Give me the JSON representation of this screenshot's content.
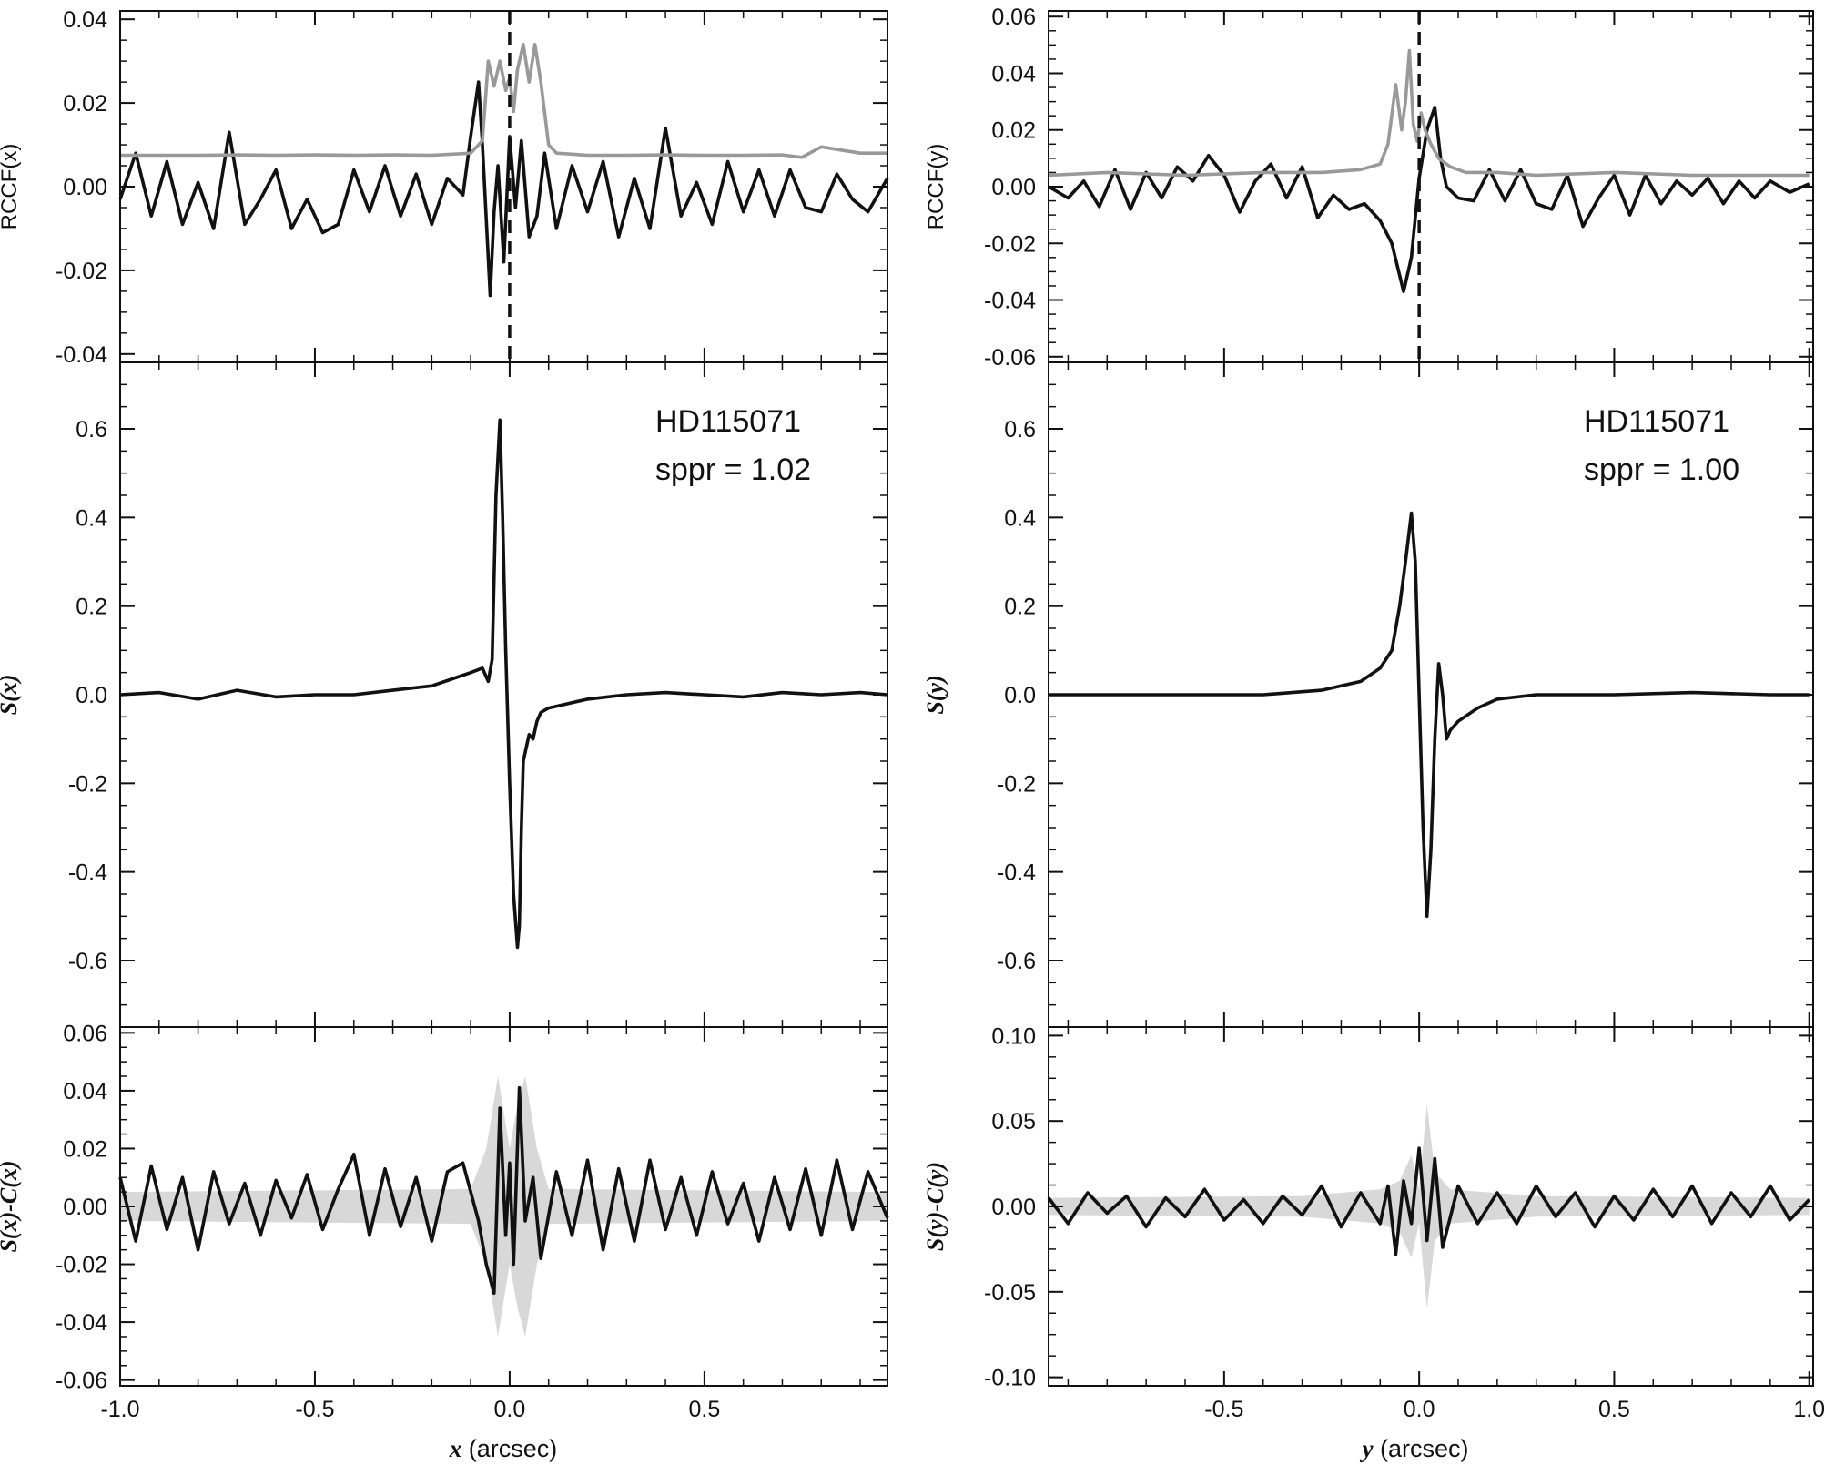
{
  "figure": {
    "panels": [
      {
        "id": "left",
        "xlim": [
          -1.0,
          0.97
        ],
        "x_ticks": [
          -1.0,
          -0.5,
          0.0,
          0.5
        ],
        "x_tick_labels": [
          "-1.0",
          "-0.5",
          "0.0",
          "0.5"
        ],
        "xlabel_var": "x",
        "xlabel_unit": " (arcsec)"
      },
      {
        "id": "right",
        "xlim": [
          -0.95,
          1.01
        ],
        "x_ticks": [
          -0.5,
          0.0,
          0.5,
          1.0
        ],
        "x_tick_labels": [
          "-0.5",
          "0.0",
          "0.5",
          "1.0"
        ],
        "xlabel_var": "y",
        "xlabel_unit": " (arcsec)"
      }
    ],
    "annotations": {
      "left": {
        "star": "HD115071",
        "sppr": "sppr = 1.02"
      },
      "right": {
        "star": "HD115071",
        "sppr": "sppr = 1.00"
      }
    }
  },
  "chart_data": [
    {
      "type": "line",
      "panel": "left-top",
      "ylabel": "RCCF(x)",
      "ylim": [
        -0.042,
        0.042
      ],
      "y_ticks": [
        -0.04,
        -0.02,
        0.0,
        0.02,
        0.04
      ],
      "y_tick_labels": [
        "-0.04",
        "-0.02",
        "0.00",
        "0.02",
        "0.04"
      ],
      "vline_x": 0.0,
      "series": [
        {
          "color": "#111111",
          "x": [
            -1.0,
            -0.96,
            -0.92,
            -0.88,
            -0.84,
            -0.8,
            -0.76,
            -0.72,
            -0.68,
            -0.64,
            -0.6,
            -0.56,
            -0.52,
            -0.48,
            -0.44,
            -0.4,
            -0.36,
            -0.32,
            -0.28,
            -0.24,
            -0.2,
            -0.16,
            -0.12,
            -0.1,
            -0.08,
            -0.07,
            -0.05,
            -0.04,
            -0.03,
            -0.015,
            0.0,
            0.015,
            0.03,
            0.05,
            0.07,
            0.09,
            0.12,
            0.16,
            0.2,
            0.24,
            0.28,
            0.32,
            0.36,
            0.4,
            0.44,
            0.48,
            0.52,
            0.56,
            0.6,
            0.64,
            0.68,
            0.72,
            0.76,
            0.8,
            0.84,
            0.88,
            0.92,
            0.97
          ],
          "y": [
            -0.003,
            0.008,
            -0.007,
            0.006,
            -0.009,
            0.001,
            -0.01,
            0.013,
            -0.009,
            -0.003,
            0.004,
            -0.01,
            -0.003,
            -0.011,
            -0.009,
            0.004,
            -0.006,
            0.005,
            -0.007,
            0.003,
            -0.009,
            0.002,
            -0.002,
            0.012,
            0.025,
            0.01,
            -0.026,
            -0.006,
            0.005,
            -0.018,
            0.012,
            -0.005,
            0.011,
            -0.012,
            -0.007,
            0.008,
            -0.01,
            0.005,
            -0.006,
            0.006,
            -0.012,
            0.002,
            -0.01,
            0.014,
            -0.007,
            0.001,
            -0.009,
            0.006,
            -0.006,
            0.004,
            -0.007,
            0.004,
            -0.005,
            -0.006,
            0.003,
            -0.003,
            -0.006,
            0.002
          ]
        },
        {
          "color": "#999999",
          "x": [
            -1.0,
            -0.9,
            -0.8,
            -0.7,
            -0.6,
            -0.5,
            -0.4,
            -0.3,
            -0.2,
            -0.1,
            -0.07,
            -0.055,
            -0.04,
            -0.025,
            -0.01,
            0.0,
            0.01,
            0.02,
            0.035,
            0.05,
            0.065,
            0.08,
            0.1,
            0.12,
            0.2,
            0.3,
            0.4,
            0.5,
            0.6,
            0.7,
            0.75,
            0.8,
            0.9,
            0.97
          ],
          "y": [
            0.0075,
            0.0075,
            0.0075,
            0.0076,
            0.0075,
            0.0076,
            0.0075,
            0.0076,
            0.0075,
            0.008,
            0.011,
            0.03,
            0.024,
            0.03,
            0.023,
            0.026,
            0.018,
            0.028,
            0.034,
            0.025,
            0.034,
            0.025,
            0.01,
            0.008,
            0.0075,
            0.0075,
            0.0076,
            0.0075,
            0.0075,
            0.0076,
            0.007,
            0.0095,
            0.008,
            0.008
          ]
        }
      ]
    },
    {
      "type": "line",
      "panel": "left-middle",
      "ylabel": "S(x)",
      "ylim": [
        -0.75,
        0.75
      ],
      "y_ticks": [
        -0.6,
        -0.4,
        -0.2,
        0.0,
        0.2,
        0.4,
        0.6
      ],
      "y_tick_labels": [
        "-0.6",
        "-0.4",
        "-0.2",
        "0.0",
        "0.2",
        "0.4",
        "0.6"
      ],
      "series": [
        {
          "color": "#111111",
          "x": [
            -1.0,
            -0.9,
            -0.8,
            -0.7,
            -0.6,
            -0.5,
            -0.4,
            -0.3,
            -0.2,
            -0.15,
            -0.1,
            -0.07,
            -0.055,
            -0.045,
            -0.035,
            -0.025,
            -0.018,
            -0.01,
            0.0,
            0.01,
            0.02,
            0.025,
            0.03,
            0.035,
            0.05,
            0.06,
            0.07,
            0.08,
            0.1,
            0.15,
            0.2,
            0.3,
            0.4,
            0.5,
            0.6,
            0.7,
            0.8,
            0.9,
            0.97
          ],
          "y": [
            0.0,
            0.005,
            -0.01,
            0.01,
            -0.005,
            0.0,
            0.0,
            0.01,
            0.02,
            0.035,
            0.05,
            0.06,
            0.03,
            0.08,
            0.45,
            0.62,
            0.4,
            0.1,
            -0.2,
            -0.45,
            -0.57,
            -0.52,
            -0.3,
            -0.15,
            -0.09,
            -0.1,
            -0.06,
            -0.04,
            -0.03,
            -0.02,
            -0.01,
            0.0,
            0.005,
            0.0,
            -0.005,
            0.005,
            0.0,
            0.005,
            0.0
          ]
        }
      ]
    },
    {
      "type": "line",
      "panel": "left-bottom",
      "ylabel": "S(x)-C(x)",
      "ylim": [
        -0.062,
        0.062
      ],
      "y_ticks": [
        -0.06,
        -0.04,
        -0.02,
        0.0,
        0.02,
        0.04,
        0.06
      ],
      "y_tick_labels": [
        "-0.06",
        "-0.04",
        "-0.02",
        "0.00",
        "0.02",
        "0.04",
        "0.06"
      ],
      "envelope_color": "#d8d8d8",
      "envelope": {
        "x": [
          -1.0,
          -0.1,
          -0.06,
          -0.03,
          0.0,
          0.02,
          0.04,
          0.07,
          0.1,
          0.97
        ],
        "upper": [
          0.005,
          0.006,
          0.02,
          0.045,
          0.02,
          0.035,
          0.045,
          0.02,
          0.006,
          0.005
        ]
      },
      "series": [
        {
          "color": "#111111",
          "x": [
            -1.0,
            -0.96,
            -0.92,
            -0.88,
            -0.84,
            -0.8,
            -0.76,
            -0.72,
            -0.68,
            -0.64,
            -0.6,
            -0.56,
            -0.52,
            -0.48,
            -0.44,
            -0.4,
            -0.36,
            -0.32,
            -0.28,
            -0.24,
            -0.2,
            -0.16,
            -0.12,
            -0.08,
            -0.06,
            -0.04,
            -0.025,
            -0.01,
            0.0,
            0.01,
            0.025,
            0.04,
            0.06,
            0.08,
            0.12,
            0.16,
            0.2,
            0.24,
            0.28,
            0.32,
            0.36,
            0.4,
            0.44,
            0.48,
            0.52,
            0.56,
            0.6,
            0.64,
            0.68,
            0.72,
            0.76,
            0.8,
            0.84,
            0.88,
            0.92,
            0.97
          ],
          "y": [
            0.01,
            -0.012,
            0.014,
            -0.008,
            0.01,
            -0.015,
            0.012,
            -0.006,
            0.008,
            -0.01,
            0.009,
            -0.004,
            0.011,
            -0.008,
            0.006,
            0.018,
            -0.01,
            0.013,
            -0.007,
            0.01,
            -0.012,
            0.012,
            0.015,
            -0.005,
            -0.02,
            -0.03,
            0.034,
            -0.01,
            0.015,
            -0.02,
            0.041,
            -0.005,
            0.01,
            -0.018,
            0.012,
            -0.01,
            0.016,
            -0.015,
            0.013,
            -0.012,
            0.016,
            -0.008,
            0.01,
            -0.01,
            0.012,
            -0.006,
            0.008,
            -0.012,
            0.01,
            -0.008,
            0.013,
            -0.01,
            0.016,
            -0.008,
            0.012,
            -0.004
          ]
        }
      ]
    },
    {
      "type": "line",
      "panel": "right-top",
      "ylabel": "RCCF(y)",
      "ylim": [
        -0.062,
        0.062
      ],
      "y_ticks": [
        -0.06,
        -0.04,
        -0.02,
        0.0,
        0.02,
        0.04,
        0.06
      ],
      "y_tick_labels": [
        "-0.06",
        "-0.04",
        "-0.02",
        "0.00",
        "0.02",
        "0.04",
        "0.06"
      ],
      "vline_x": 0.0,
      "series": [
        {
          "color": "#111111",
          "x": [
            -0.95,
            -0.9,
            -0.86,
            -0.82,
            -0.78,
            -0.74,
            -0.7,
            -0.66,
            -0.62,
            -0.58,
            -0.54,
            -0.5,
            -0.46,
            -0.42,
            -0.38,
            -0.34,
            -0.3,
            -0.26,
            -0.22,
            -0.18,
            -0.14,
            -0.1,
            -0.07,
            -0.04,
            -0.02,
            0.0,
            0.02,
            0.04,
            0.055,
            0.07,
            0.1,
            0.14,
            0.18,
            0.22,
            0.26,
            0.3,
            0.34,
            0.38,
            0.42,
            0.46,
            0.5,
            0.54,
            0.58,
            0.62,
            0.66,
            0.7,
            0.74,
            0.78,
            0.82,
            0.86,
            0.9,
            0.95,
            1.0
          ],
          "y": [
            0.0,
            -0.004,
            0.002,
            -0.007,
            0.006,
            -0.008,
            0.005,
            -0.004,
            0.007,
            0.002,
            0.011,
            0.004,
            -0.009,
            0.002,
            0.008,
            -0.004,
            0.007,
            -0.011,
            -0.003,
            -0.008,
            -0.006,
            -0.012,
            -0.02,
            -0.037,
            -0.025,
            0.003,
            0.02,
            0.028,
            0.01,
            0.0,
            -0.004,
            -0.005,
            0.006,
            -0.005,
            0.006,
            -0.006,
            -0.008,
            0.004,
            -0.014,
            -0.004,
            0.004,
            -0.01,
            0.004,
            -0.006,
            0.002,
            -0.003,
            0.003,
            -0.006,
            0.002,
            -0.004,
            0.002,
            -0.002,
            0.001
          ]
        },
        {
          "color": "#999999",
          "x": [
            -0.95,
            -0.8,
            -0.6,
            -0.4,
            -0.25,
            -0.15,
            -0.1,
            -0.08,
            -0.06,
            -0.045,
            -0.035,
            -0.025,
            -0.015,
            -0.005,
            0.005,
            0.015,
            0.03,
            0.05,
            0.08,
            0.12,
            0.2,
            0.3,
            0.5,
            0.7,
            0.9,
            1.0
          ],
          "y": [
            0.004,
            0.005,
            0.004,
            0.005,
            0.005,
            0.006,
            0.008,
            0.015,
            0.036,
            0.02,
            0.03,
            0.048,
            0.022,
            0.016,
            0.026,
            0.02,
            0.015,
            0.01,
            0.007,
            0.005,
            0.005,
            0.004,
            0.005,
            0.004,
            0.004,
            0.004
          ]
        }
      ]
    },
    {
      "type": "line",
      "panel": "right-middle",
      "ylabel": "S(y)",
      "ylim": [
        -0.75,
        0.75
      ],
      "y_ticks": [
        -0.6,
        -0.4,
        -0.2,
        0.0,
        0.2,
        0.4,
        0.6
      ],
      "y_tick_labels": [
        "-0.6",
        "-0.4",
        "-0.2",
        "0.0",
        "0.2",
        "0.4",
        "0.6"
      ],
      "series": [
        {
          "color": "#111111",
          "x": [
            -0.95,
            -0.8,
            -0.6,
            -0.4,
            -0.25,
            -0.15,
            -0.1,
            -0.07,
            -0.05,
            -0.035,
            -0.02,
            -0.01,
            0.0,
            0.01,
            0.02,
            0.03,
            0.04,
            0.05,
            0.06,
            0.07,
            0.08,
            0.1,
            0.15,
            0.2,
            0.3,
            0.5,
            0.7,
            0.9,
            1.0
          ],
          "y": [
            0.0,
            0.0,
            0.0,
            0.0,
            0.01,
            0.03,
            0.06,
            0.1,
            0.2,
            0.3,
            0.41,
            0.3,
            0.0,
            -0.3,
            -0.5,
            -0.35,
            -0.1,
            0.07,
            0.0,
            -0.1,
            -0.08,
            -0.06,
            -0.03,
            -0.01,
            0.0,
            0.0,
            0.005,
            0.0,
            0.0
          ]
        }
      ]
    },
    {
      "type": "line",
      "panel": "right-bottom",
      "ylabel": "S(y)-C(y)",
      "ylim": [
        -0.105,
        0.105
      ],
      "y_ticks": [
        -0.1,
        -0.05,
        0.0,
        0.05,
        0.1
      ],
      "y_tick_labels": [
        "-0.10",
        "-0.05",
        "0.00",
        "0.05",
        "0.10"
      ],
      "envelope_color": "#d8d8d8",
      "envelope": {
        "x": [
          -0.95,
          -0.3,
          -0.1,
          -0.05,
          -0.02,
          0.0,
          0.02,
          0.04,
          0.08,
          0.3,
          1.0
        ],
        "upper": [
          0.005,
          0.006,
          0.01,
          0.015,
          0.03,
          0.01,
          0.06,
          0.02,
          0.01,
          0.006,
          0.005
        ]
      },
      "series": [
        {
          "color": "#111111",
          "x": [
            -0.95,
            -0.9,
            -0.85,
            -0.8,
            -0.75,
            -0.7,
            -0.65,
            -0.6,
            -0.55,
            -0.5,
            -0.45,
            -0.4,
            -0.35,
            -0.3,
            -0.25,
            -0.2,
            -0.15,
            -0.1,
            -0.08,
            -0.06,
            -0.04,
            -0.02,
            0.0,
            0.02,
            0.04,
            0.06,
            0.1,
            0.15,
            0.2,
            0.25,
            0.3,
            0.35,
            0.4,
            0.45,
            0.5,
            0.55,
            0.6,
            0.65,
            0.7,
            0.75,
            0.8,
            0.85,
            0.9,
            0.95,
            1.0
          ],
          "y": [
            0.005,
            -0.01,
            0.008,
            -0.004,
            0.006,
            -0.012,
            0.005,
            -0.006,
            0.01,
            -0.008,
            0.004,
            -0.01,
            0.006,
            -0.005,
            0.012,
            -0.012,
            0.008,
            -0.01,
            0.012,
            -0.028,
            0.015,
            -0.01,
            0.034,
            -0.02,
            0.028,
            -0.024,
            0.012,
            -0.01,
            0.008,
            -0.01,
            0.012,
            -0.006,
            0.008,
            -0.012,
            0.006,
            -0.008,
            0.01,
            -0.006,
            0.012,
            -0.01,
            0.008,
            -0.006,
            0.012,
            -0.008,
            0.004
          ]
        }
      ]
    }
  ]
}
